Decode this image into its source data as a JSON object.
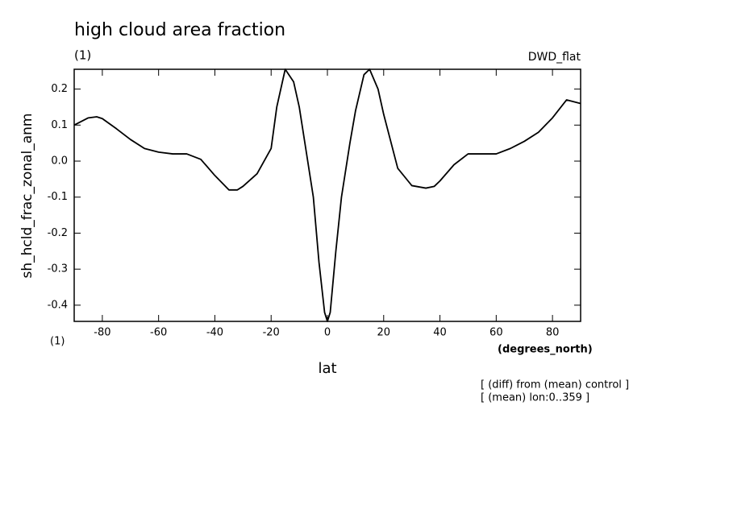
{
  "chart_data": {
    "type": "line",
    "title": "high cloud area fraction",
    "subtitle": "(1)",
    "dataset": "DWD_flat",
    "y_label": "sh_hcld_frac_zonal_anm",
    "y_units": "(1)",
    "x_units": "(degrees_north)",
    "x_label": "lat",
    "annotations": [
      "[ (diff) from (mean) control ]",
      "[ (mean) lon:0..359 ]"
    ],
    "x": [
      -90,
      -85,
      -82,
      -80,
      -75,
      -70,
      -65,
      -60,
      -55,
      -50,
      -45,
      -40,
      -35,
      -32,
      -30,
      -25,
      -20,
      -18,
      -15,
      -12,
      -10,
      -8,
      -5,
      -3,
      -1,
      0,
      1,
      3,
      5,
      8,
      10,
      13,
      15,
      18,
      20,
      25,
      30,
      35,
      38,
      40,
      45,
      50,
      55,
      60,
      65,
      70,
      75,
      80,
      85,
      90
    ],
    "series": [
      {
        "color": "#000000",
        "values": [
          0.1,
          0.12,
          0.123,
          0.118,
          0.09,
          0.06,
          0.035,
          0.025,
          0.02,
          0.02,
          0.005,
          -0.04,
          -0.08,
          -0.08,
          -0.07,
          -0.035,
          0.035,
          0.15,
          0.255,
          0.22,
          0.15,
          0.05,
          -0.1,
          -0.28,
          -0.42,
          -0.445,
          -0.42,
          -0.25,
          -0.1,
          0.05,
          0.14,
          0.24,
          0.255,
          0.2,
          0.13,
          -0.02,
          -0.068,
          -0.075,
          -0.07,
          -0.055,
          -0.01,
          0.02,
          0.02,
          0.02,
          0.035,
          0.055,
          0.08,
          0.12,
          0.17,
          0.16
        ]
      }
    ],
    "xlim": [
      -90,
      90
    ],
    "ylim": [
      -0.445,
      0.255
    ],
    "xticks": [
      -80,
      -60,
      -40,
      -20,
      0,
      20,
      40,
      60,
      80
    ],
    "yticks": [
      -0.4,
      -0.3,
      -0.2,
      -0.1,
      {
        "value": 0,
        "label": "0.0"
      },
      0.1,
      0.2
    ]
  }
}
